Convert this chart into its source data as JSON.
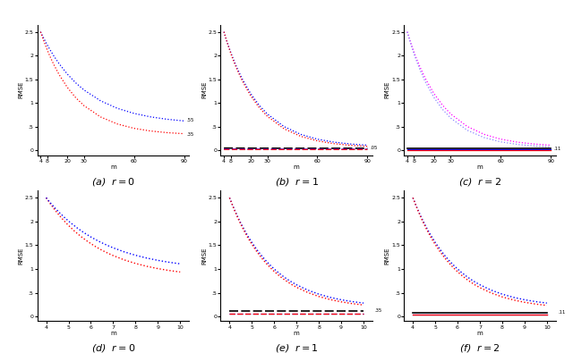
{
  "top_x_dense": [
    4,
    5,
    6,
    7,
    8,
    9,
    10,
    12,
    15,
    20,
    25,
    30,
    40,
    50,
    60,
    70,
    80,
    90
  ],
  "bot_x_dense": [
    4.0,
    4.2,
    4.4,
    4.6,
    4.8,
    5.0,
    5.2,
    5.4,
    5.6,
    5.8,
    6.0,
    6.2,
    6.4,
    6.6,
    6.8,
    7.0,
    7.5,
    8.0,
    8.5,
    9.0,
    9.5,
    10.0
  ],
  "top_xticks": [
    4,
    8,
    20,
    30,
    60,
    90
  ],
  "bot_xticks": [
    4,
    5,
    6,
    7,
    8,
    9,
    10
  ],
  "top_yticks": [
    0.0,
    0.5,
    1.0,
    1.5,
    2.0,
    2.5
  ],
  "top_yticklabels": [
    "0",
    ".5",
    "1",
    "1.5",
    "2",
    "2.5"
  ],
  "bot_yticks": [
    0.0,
    0.5,
    1.0,
    1.5,
    2.0,
    2.5
  ],
  "bot_yticklabels": [
    "0",
    ".5",
    "1",
    "1.5",
    "2",
    "2.5"
  ],
  "subtitles": [
    "(a)  $r = 0$",
    "(b)  $r = 1$",
    "(c)  $r = 2$",
    "(d)  $r = 0$",
    "(e)  $r = 1$",
    "(f)  $r = 2$"
  ],
  "ylabel": "RMSE",
  "xlabel": "m",
  "blue": "#0000ff",
  "red": "#ff0000",
  "black": "#000000",
  "magenta": "#ff00ff",
  "top_right_labels_a": [
    ".55",
    ".35"
  ],
  "top_right_labels_b": [
    ".05"
  ],
  "top_right_labels_c": [
    ".11"
  ],
  "bot_right_labels_e": [
    ".35"
  ],
  "bot_right_labels_f": [
    ".11"
  ]
}
